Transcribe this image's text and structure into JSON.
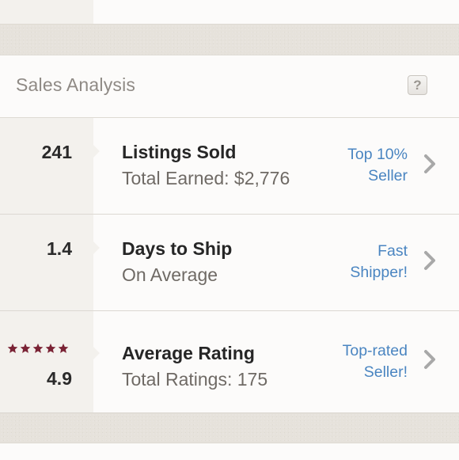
{
  "header": {
    "title": "Sales Analysis",
    "help_label": "?"
  },
  "rows": [
    {
      "value": "241",
      "title": "Listings Sold",
      "subtitle": "Total Earned: $2,776",
      "badge_line1": "Top 10%",
      "badge_line2": "Seller"
    },
    {
      "value": "1.4",
      "title": "Days to Ship",
      "subtitle": "On Average",
      "badge_line1": "Fast",
      "badge_line2": "Shipper!"
    },
    {
      "value": "4.9",
      "title": "Average Rating",
      "subtitle": "Total Ratings: 175",
      "badge_line1": "Top-rated",
      "badge_line2": "Seller!",
      "stars": 5
    }
  ],
  "colors": {
    "star": "#7a2335",
    "link": "#4a85c1",
    "chevron": "#a8a8a8"
  },
  "icons": {
    "help": "question-mark-icon",
    "chevron": "chevron-right-icon",
    "star": "star-icon"
  }
}
